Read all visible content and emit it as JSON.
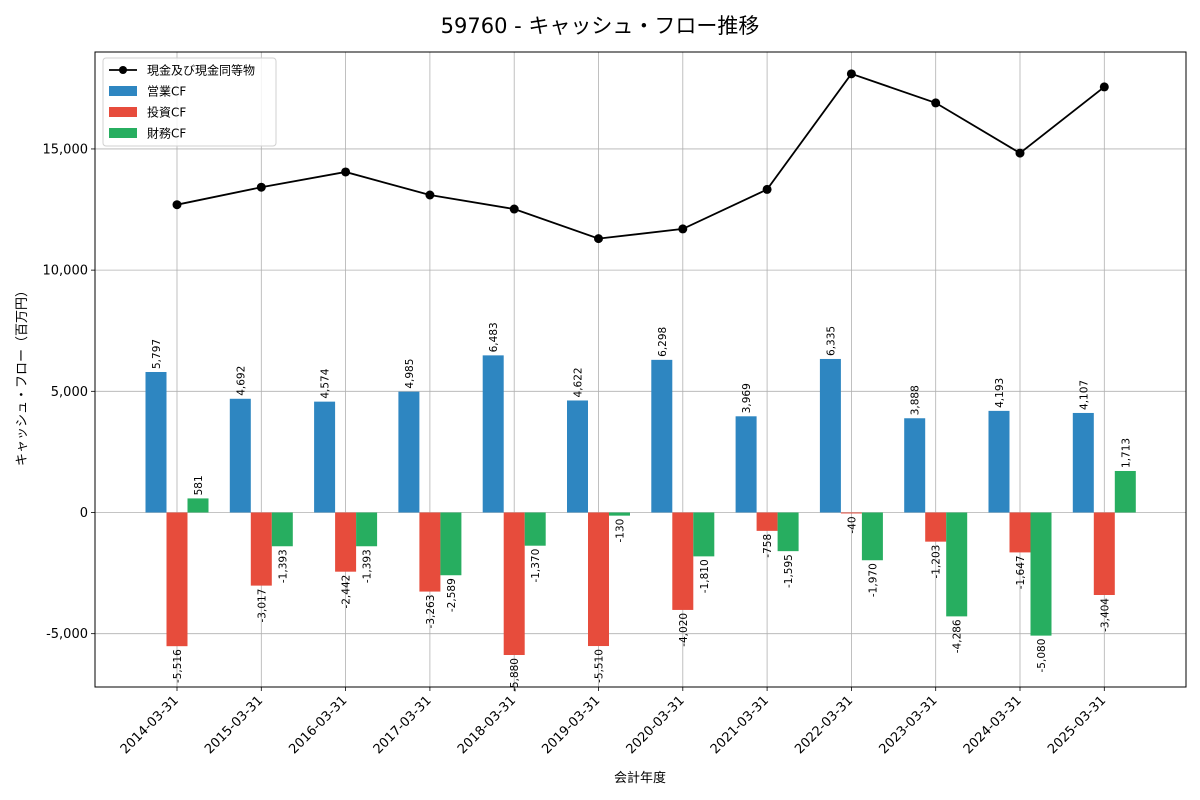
{
  "chart_data": {
    "type": "bar",
    "title": "59760 - キャッシュ・フロー推移",
    "xlabel": "会計年度",
    "ylabel": "キャッシュ・フロー（百万円）",
    "categories": [
      "2014-03-31",
      "2015-03-31",
      "2016-03-31",
      "2017-03-31",
      "2018-03-31",
      "2019-03-31",
      "2020-03-31",
      "2021-03-31",
      "2022-03-31",
      "2023-03-31",
      "2024-03-31",
      "2025-03-31"
    ],
    "ylim": [
      -7200,
      19000
    ],
    "yticks": [
      -5000,
      0,
      5000,
      10000,
      15000
    ],
    "ytick_labels": [
      "-5,000",
      "0",
      "5,000",
      "10,000",
      "15,000"
    ],
    "grid": true,
    "legend_position": "top-left",
    "series": [
      {
        "name": "営業CF",
        "type": "bar",
        "color": "#2e86c1",
        "values": [
          5797,
          4692,
          4574,
          4985,
          6483,
          4622,
          6298,
          3969,
          6335,
          3888,
          4193,
          4107
        ],
        "labels": [
          "5,797",
          "4,692",
          "4,574",
          "4,985",
          "6,483",
          "4,622",
          "6,298",
          "3,969",
          "6,335",
          "3,888",
          "4,193",
          "4,107"
        ]
      },
      {
        "name": "投資CF",
        "type": "bar",
        "color": "#e74c3c",
        "values": [
          -5516,
          -3017,
          -2442,
          -3263,
          -5880,
          -5510,
          -4020,
          -758,
          -40,
          -1203,
          -1647,
          -3404
        ],
        "labels": [
          "-5,516",
          "-3,017",
          "-2,442",
          "-3,263",
          "-5,880",
          "-5,510",
          "-4,020",
          "-758",
          "-40",
          "-1,203",
          "-1,647",
          "-3,404"
        ]
      },
      {
        "name": "財務CF",
        "type": "bar",
        "color": "#27ae60",
        "values": [
          581,
          -1393,
          -1393,
          -2589,
          -1370,
          -130,
          -1810,
          -1595,
          -1970,
          -4286,
          -5080,
          1713
        ],
        "labels": [
          "581",
          "-1,393",
          "-1,393",
          "-2,589",
          "-1,370",
          "-130",
          "-1,810",
          "-1,595",
          "-1,970",
          "-4,286",
          "-5,080",
          "1,713"
        ]
      },
      {
        "name": "現金及び現金同等物",
        "type": "line",
        "color": "#000000",
        "values": [
          12700,
          13420,
          14050,
          13100,
          12520,
          11300,
          11700,
          13330,
          18100,
          16900,
          14830,
          17560
        ]
      }
    ]
  }
}
